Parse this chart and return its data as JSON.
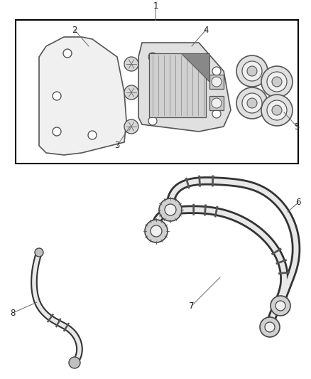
{
  "background_color": "#ffffff",
  "line_color": "#000000",
  "gray_dark": "#444444",
  "gray_mid": "#888888",
  "gray_light": "#cccccc",
  "hose_color": "#c8c0b0",
  "hose_shadow": "#333333",
  "figsize": [
    4.38,
    5.33
  ],
  "dpi": 100
}
